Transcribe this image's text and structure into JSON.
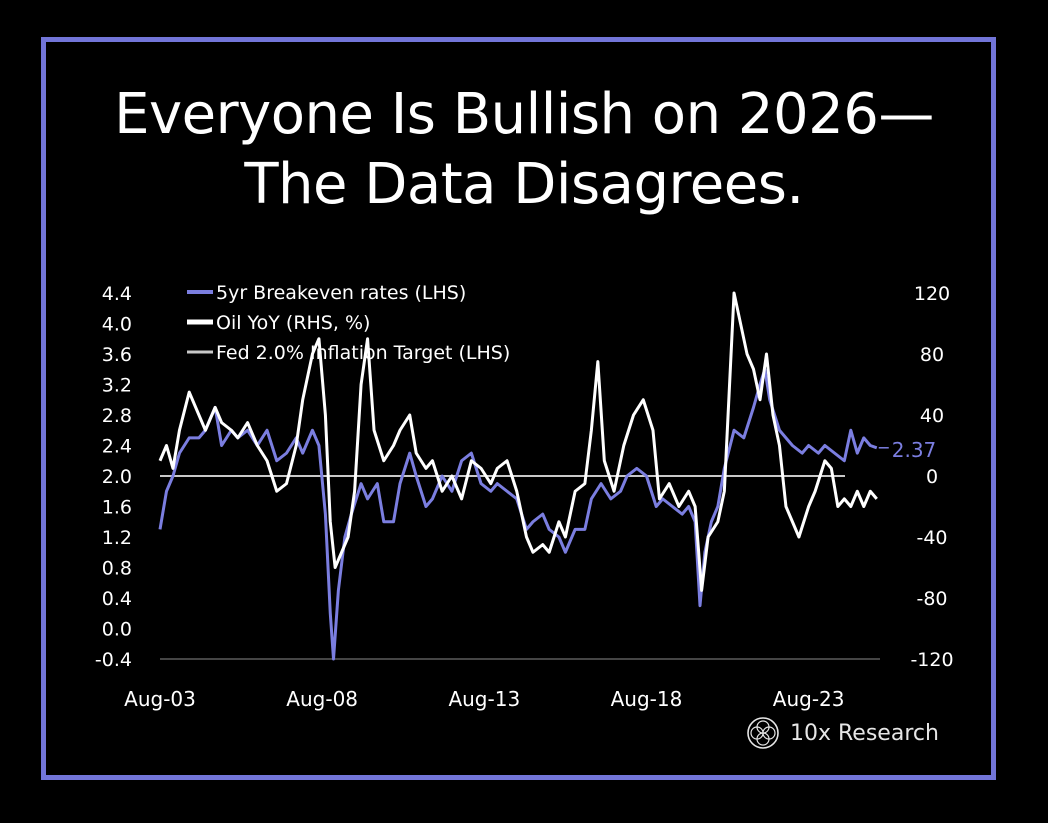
{
  "title": {
    "line1": "Everyone Is Bullish on 2026—",
    "line2": "The Data Disagrees."
  },
  "brand": {
    "name": "10x Research",
    "icon": "logo-icon"
  },
  "colors": {
    "background": "#000000",
    "frame": "#7275d8",
    "breakeven": "#7b7ee0",
    "oil": "#ffffff",
    "target": "#c8c8c8"
  },
  "chart_data": {
    "type": "line",
    "x_tick_labels": [
      "Aug-03",
      "Aug-08",
      "Aug-13",
      "Aug-18",
      "Aug-23"
    ],
    "x_range": [
      2003.6,
      2025.8
    ],
    "y_left": {
      "ticks": [
        4.4,
        4.0,
        3.6,
        3.2,
        2.8,
        2.4,
        2.0,
        1.6,
        1.2,
        0.8,
        0.4,
        0.0,
        -0.4
      ],
      "tick_labels": [
        "4.4",
        "4.0",
        "3.6",
        "3.2",
        "2.8",
        "2.4",
        "2.0",
        "1.6",
        "1.2",
        "0.8",
        "0.4",
        "0.0",
        "-0.4"
      ],
      "range": [
        -0.4,
        4.4
      ]
    },
    "y_right": {
      "ticks": [
        120,
        80,
        40,
        0,
        -40,
        -80,
        -120
      ],
      "tick_labels": [
        "120",
        "80",
        "40",
        "0",
        "-40",
        "-80",
        "-120"
      ],
      "range": [
        -120,
        120
      ]
    },
    "legend": [
      {
        "label": "5yr Breakeven rates (LHS)",
        "color": "#7b7ee0"
      },
      {
        "label": "Oil YoY (RHS, %)",
        "color": "#ffffff"
      },
      {
        "label": "Fed 2.0% Inflation Target (LHS)",
        "color": "#c8c8c8"
      }
    ],
    "target_value": 2.0,
    "last_value_label": "2.37",
    "series": [
      {
        "name": "5yr Breakeven rates (LHS)",
        "axis": "left",
        "points": [
          [
            2003.6,
            1.3
          ],
          [
            2003.8,
            1.8
          ],
          [
            2004.0,
            2.0
          ],
          [
            2004.2,
            2.3
          ],
          [
            2004.5,
            2.5
          ],
          [
            2004.8,
            2.5
          ],
          [
            2005.0,
            2.6
          ],
          [
            2005.3,
            2.9
          ],
          [
            2005.5,
            2.4
          ],
          [
            2005.8,
            2.6
          ],
          [
            2006.0,
            2.5
          ],
          [
            2006.3,
            2.6
          ],
          [
            2006.6,
            2.4
          ],
          [
            2006.9,
            2.6
          ],
          [
            2007.2,
            2.2
          ],
          [
            2007.5,
            2.3
          ],
          [
            2007.8,
            2.5
          ],
          [
            2008.0,
            2.3
          ],
          [
            2008.3,
            2.6
          ],
          [
            2008.5,
            2.4
          ],
          [
            2008.7,
            1.5
          ],
          [
            2008.85,
            0.2
          ],
          [
            2008.95,
            -0.4
          ],
          [
            2009.1,
            0.5
          ],
          [
            2009.3,
            1.2
          ],
          [
            2009.5,
            1.5
          ],
          [
            2009.8,
            1.9
          ],
          [
            2010.0,
            1.7
          ],
          [
            2010.3,
            1.9
          ],
          [
            2010.5,
            1.4
          ],
          [
            2010.8,
            1.4
          ],
          [
            2011.0,
            1.9
          ],
          [
            2011.3,
            2.3
          ],
          [
            2011.5,
            2.0
          ],
          [
            2011.8,
            1.6
          ],
          [
            2012.0,
            1.7
          ],
          [
            2012.3,
            2.0
          ],
          [
            2012.6,
            1.8
          ],
          [
            2012.9,
            2.2
          ],
          [
            2013.2,
            2.3
          ],
          [
            2013.5,
            1.9
          ],
          [
            2013.8,
            1.8
          ],
          [
            2014.0,
            1.9
          ],
          [
            2014.3,
            1.8
          ],
          [
            2014.6,
            1.7
          ],
          [
            2014.9,
            1.3
          ],
          [
            2015.1,
            1.4
          ],
          [
            2015.4,
            1.5
          ],
          [
            2015.6,
            1.3
          ],
          [
            2015.9,
            1.2
          ],
          [
            2016.1,
            1.0
          ],
          [
            2016.4,
            1.3
          ],
          [
            2016.7,
            1.3
          ],
          [
            2016.9,
            1.7
          ],
          [
            2017.2,
            1.9
          ],
          [
            2017.5,
            1.7
          ],
          [
            2017.8,
            1.8
          ],
          [
            2018.0,
            2.0
          ],
          [
            2018.3,
            2.1
          ],
          [
            2018.6,
            2.0
          ],
          [
            2018.9,
            1.6
          ],
          [
            2019.1,
            1.7
          ],
          [
            2019.4,
            1.6
          ],
          [
            2019.7,
            1.5
          ],
          [
            2019.9,
            1.6
          ],
          [
            2020.1,
            1.4
          ],
          [
            2020.25,
            0.3
          ],
          [
            2020.4,
            1.0
          ],
          [
            2020.6,
            1.4
          ],
          [
            2020.8,
            1.6
          ],
          [
            2021.0,
            2.1
          ],
          [
            2021.3,
            2.6
          ],
          [
            2021.6,
            2.5
          ],
          [
            2021.9,
            2.9
          ],
          [
            2022.1,
            3.2
          ],
          [
            2022.25,
            3.4
          ],
          [
            2022.4,
            3.0
          ],
          [
            2022.7,
            2.6
          ],
          [
            2022.9,
            2.5
          ],
          [
            2023.1,
            2.4
          ],
          [
            2023.4,
            2.3
          ],
          [
            2023.6,
            2.4
          ],
          [
            2023.9,
            2.3
          ],
          [
            2024.1,
            2.4
          ],
          [
            2024.4,
            2.3
          ],
          [
            2024.7,
            2.2
          ],
          [
            2024.9,
            2.6
          ],
          [
            2025.1,
            2.3
          ],
          [
            2025.3,
            2.5
          ],
          [
            2025.5,
            2.4
          ],
          [
            2025.7,
            2.37
          ]
        ]
      },
      {
        "name": "Oil YoY (RHS, %)",
        "axis": "right",
        "points": [
          [
            2003.6,
            10
          ],
          [
            2003.8,
            20
          ],
          [
            2004.0,
            5
          ],
          [
            2004.2,
            30
          ],
          [
            2004.5,
            55
          ],
          [
            2004.8,
            40
          ],
          [
            2005.0,
            30
          ],
          [
            2005.3,
            45
          ],
          [
            2005.5,
            35
          ],
          [
            2005.8,
            30
          ],
          [
            2006.0,
            25
          ],
          [
            2006.3,
            35
          ],
          [
            2006.6,
            20
          ],
          [
            2006.9,
            10
          ],
          [
            2007.2,
            -10
          ],
          [
            2007.5,
            -5
          ],
          [
            2007.8,
            20
          ],
          [
            2008.0,
            50
          ],
          [
            2008.3,
            80
          ],
          [
            2008.5,
            90
          ],
          [
            2008.7,
            40
          ],
          [
            2008.85,
            -30
          ],
          [
            2009.0,
            -60
          ],
          [
            2009.2,
            -50
          ],
          [
            2009.4,
            -40
          ],
          [
            2009.6,
            -10
          ],
          [
            2009.8,
            60
          ],
          [
            2010.0,
            90
          ],
          [
            2010.2,
            30
          ],
          [
            2010.5,
            10
          ],
          [
            2010.8,
            20
          ],
          [
            2011.0,
            30
          ],
          [
            2011.3,
            40
          ],
          [
            2011.5,
            15
          ],
          [
            2011.8,
            5
          ],
          [
            2012.0,
            10
          ],
          [
            2012.3,
            -10
          ],
          [
            2012.6,
            0
          ],
          [
            2012.9,
            -15
          ],
          [
            2013.2,
            10
          ],
          [
            2013.5,
            5
          ],
          [
            2013.8,
            -5
          ],
          [
            2014.0,
            5
          ],
          [
            2014.3,
            10
          ],
          [
            2014.6,
            -10
          ],
          [
            2014.9,
            -40
          ],
          [
            2015.1,
            -50
          ],
          [
            2015.4,
            -45
          ],
          [
            2015.6,
            -50
          ],
          [
            2015.9,
            -30
          ],
          [
            2016.1,
            -40
          ],
          [
            2016.4,
            -10
          ],
          [
            2016.7,
            -5
          ],
          [
            2016.9,
            30
          ],
          [
            2017.1,
            75
          ],
          [
            2017.3,
            10
          ],
          [
            2017.6,
            -10
          ],
          [
            2017.9,
            20
          ],
          [
            2018.2,
            40
          ],
          [
            2018.5,
            50
          ],
          [
            2018.8,
            30
          ],
          [
            2019.0,
            -15
          ],
          [
            2019.3,
            -5
          ],
          [
            2019.6,
            -20
          ],
          [
            2019.9,
            -10
          ],
          [
            2020.1,
            -20
          ],
          [
            2020.3,
            -75
          ],
          [
            2020.5,
            -40
          ],
          [
            2020.8,
            -30
          ],
          [
            2021.0,
            -10
          ],
          [
            2021.3,
            120
          ],
          [
            2021.5,
            100
          ],
          [
            2021.7,
            80
          ],
          [
            2021.9,
            70
          ],
          [
            2022.1,
            50
          ],
          [
            2022.3,
            80
          ],
          [
            2022.5,
            40
          ],
          [
            2022.7,
            20
          ],
          [
            2022.9,
            -20
          ],
          [
            2023.1,
            -30
          ],
          [
            2023.3,
            -40
          ],
          [
            2023.6,
            -20
          ],
          [
            2023.8,
            -10
          ],
          [
            2024.1,
            10
          ],
          [
            2024.3,
            5
          ],
          [
            2024.5,
            -20
          ],
          [
            2024.7,
            -15
          ],
          [
            2024.9,
            -20
          ],
          [
            2025.1,
            -10
          ],
          [
            2025.3,
            -20
          ],
          [
            2025.5,
            -10
          ],
          [
            2025.7,
            -15
          ]
        ]
      }
    ]
  }
}
